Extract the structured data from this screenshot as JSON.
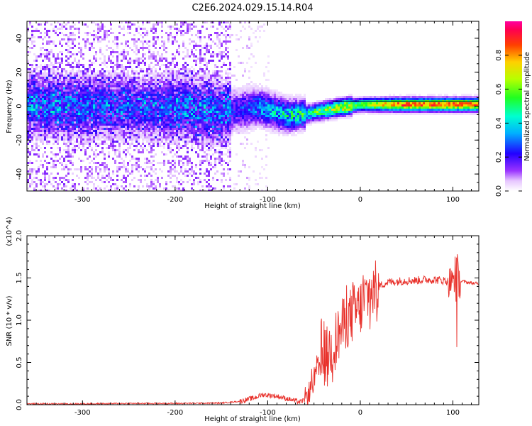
{
  "title": "C2E6.2024.029.15.14.R04",
  "chart_data": [
    {
      "type": "heatmap",
      "xlabel": "Height of straight line (km)",
      "ylabel": "Frequency (Hz)",
      "xlim": [
        -360,
        128
      ],
      "ylim": [
        -50,
        50
      ],
      "xticks": [
        -300,
        -200,
        -100,
        0,
        100
      ],
      "yticks": [
        -40,
        -20,
        0,
        20,
        40
      ],
      "colorbar": {
        "label": "Normalized spectral amplitude",
        "range": [
          0,
          1
        ],
        "ticks": [
          0.0,
          0.2,
          0.4,
          0.6,
          0.8
        ],
        "tick_labels": [
          "0.0",
          "0.2",
          "0.4",
          "0.6",
          "0.8"
        ],
        "colormap": "rainbow (white-violet-blue-cyan-green-yellow-orange-red-magenta)"
      },
      "features": {
        "band_center_hz": [
          {
            "x": -360,
            "y": 1
          },
          {
            "x": -200,
            "y": 0
          },
          {
            "x": -150,
            "y": -3
          },
          {
            "x": -110,
            "y": 0
          },
          {
            "x": -80,
            "y": -5
          },
          {
            "x": -60,
            "y": -4
          },
          {
            "x": -40,
            "y": -2
          },
          {
            "x": -20,
            "y": 0
          },
          {
            "x": 0,
            "y": 1.5
          },
          {
            "x": 50,
            "y": 1.5
          },
          {
            "x": 128,
            "y": 1.5
          }
        ],
        "reference_line_hz": 3
      }
    },
    {
      "type": "line",
      "xlabel": "Height of straight line (km)",
      "ylabel": "SNR (10 * v/v)",
      "y_multiplier": "(x10^4)",
      "xlim": [
        -360,
        128
      ],
      "ylim": [
        0,
        2
      ],
      "xticks": [
        -300,
        -200,
        -100,
        0,
        100
      ],
      "yticks": [
        0.0,
        0.5,
        1.0,
        1.5,
        2.0
      ],
      "ytick_labels": [
        "0.0",
        "0.5",
        "1.0",
        "1.5",
        "2.0"
      ],
      "color": "#e8302a",
      "series": [
        {
          "x": [
            -360,
            -300,
            -250,
            -200,
            -150,
            -130,
            -115,
            -105,
            -90,
            -75,
            -65,
            -60,
            -55,
            -50,
            -45,
            -40,
            -35,
            -30,
            -25,
            -20,
            -15,
            -10,
            -5,
            0,
            5,
            10,
            15,
            20,
            25,
            30,
            40,
            50,
            60,
            70,
            80,
            90,
            95,
            100,
            102,
            104,
            106,
            110,
            115,
            120,
            128
          ],
          "y": [
            0.01,
            0.01,
            0.015,
            0.015,
            0.02,
            0.04,
            0.08,
            0.12,
            0.1,
            0.06,
            0.03,
            0.06,
            0.15,
            0.3,
            0.45,
            0.55,
            0.6,
            0.7,
            0.8,
            0.9,
            1.0,
            1.05,
            1.1,
            1.15,
            1.25,
            1.3,
            1.35,
            1.4,
            1.43,
            1.45,
            1.46,
            1.47,
            1.47,
            1.48,
            1.48,
            1.47,
            1.46,
            1.45,
            1.55,
            1.7,
            1.45,
            1.46,
            1.45,
            1.44,
            1.43
          ]
        }
      ]
    }
  ]
}
